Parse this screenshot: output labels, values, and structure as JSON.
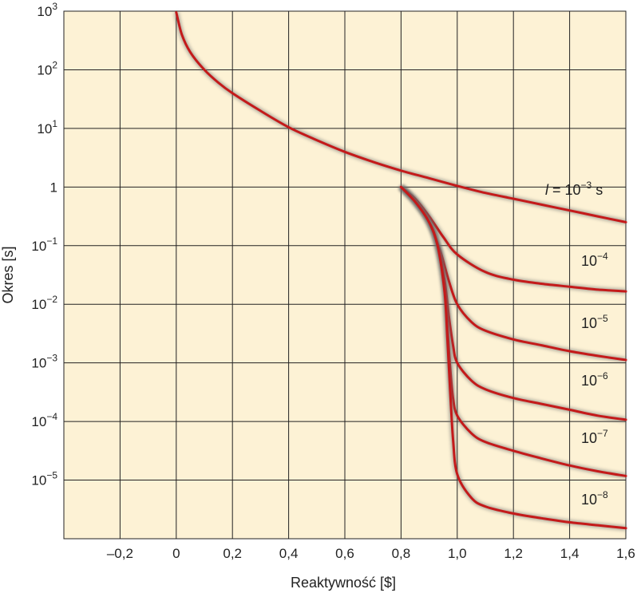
{
  "chart_data": {
    "type": "line",
    "xlabel": "Reaktywność [$]",
    "ylabel": "Okres [s]",
    "xlim": [
      -0.4,
      1.6
    ],
    "ylim_log10": [
      -6,
      3
    ],
    "y_scale": "log",
    "grid": true,
    "background": "#fdf2d5",
    "line_color": "#c41a1a",
    "x_ticks": [
      {
        "value": -0.2,
        "label": "–0,2"
      },
      {
        "value": 0.0,
        "label": "0"
      },
      {
        "value": 0.2,
        "label": "0,2"
      },
      {
        "value": 0.4,
        "label": "0,4"
      },
      {
        "value": 0.6,
        "label": "0,6"
      },
      {
        "value": 0.8,
        "label": "0,8"
      },
      {
        "value": 1.0,
        "label": "1,0"
      },
      {
        "value": 1.2,
        "label": "1,2"
      },
      {
        "value": 1.4,
        "label": "1,4"
      },
      {
        "value": 1.6,
        "label": "1,6"
      }
    ],
    "y_ticks": [
      {
        "value": 3,
        "base": "10",
        "exp": "3"
      },
      {
        "value": 2,
        "base": "10",
        "exp": "2"
      },
      {
        "value": 1,
        "base": "10",
        "exp": "1"
      },
      {
        "value": 0,
        "base": "1",
        "exp": ""
      },
      {
        "value": -1,
        "base": "10",
        "exp": "−1"
      },
      {
        "value": -2,
        "base": "10",
        "exp": "−2"
      },
      {
        "value": -3,
        "base": "10",
        "exp": "−3"
      },
      {
        "value": -4,
        "base": "10",
        "exp": "−4"
      },
      {
        "value": -5,
        "base": "10",
        "exp": "−5"
      }
    ],
    "series": [
      {
        "label_base": "10",
        "label_exp": "−3",
        "label_prefix": "l = ",
        "label_suffix": " s",
        "x": [
          0,
          0.02,
          0.05,
          0.1,
          0.15,
          0.2,
          0.3,
          0.4,
          0.5,
          0.6,
          0.7,
          0.8,
          0.9,
          1.0,
          1.1,
          1.2,
          1.3,
          1.4,
          1.5,
          1.6
        ],
        "log10_y": [
          2.98,
          2.6,
          2.3,
          2.0,
          1.78,
          1.6,
          1.3,
          1.02,
          0.8,
          0.6,
          0.43,
          0.28,
          0.15,
          0.02,
          -0.1,
          -0.2,
          -0.3,
          -0.4,
          -0.5,
          -0.6
        ]
      },
      {
        "label_base": "10",
        "label_exp": "−4",
        "x": [
          0.8,
          0.85,
          0.9,
          0.95,
          1.0,
          1.1,
          1.2,
          1.3,
          1.4,
          1.5,
          1.6
        ],
        "log10_y": [
          0.0,
          -0.2,
          -0.5,
          -0.85,
          -1.15,
          -1.45,
          -1.58,
          -1.65,
          -1.7,
          -1.75,
          -1.78
        ]
      },
      {
        "label_base": "10",
        "label_exp": "−5",
        "x": [
          0.8,
          0.85,
          0.9,
          0.94,
          0.97,
          1.0,
          1.05,
          1.1,
          1.2,
          1.3,
          1.4,
          1.5,
          1.6
        ],
        "log10_y": [
          0.0,
          -0.25,
          -0.6,
          -1.1,
          -1.6,
          -2.0,
          -2.3,
          -2.45,
          -2.6,
          -2.7,
          -2.8,
          -2.88,
          -2.95
        ]
      },
      {
        "label_base": "10",
        "label_exp": "−6",
        "x": [
          0.8,
          0.85,
          0.9,
          0.93,
          0.955,
          0.97,
          0.985,
          1.0,
          1.05,
          1.1,
          1.2,
          1.3,
          1.4,
          1.5,
          1.6
        ],
        "log10_y": [
          0.0,
          -0.25,
          -0.6,
          -1.0,
          -1.6,
          -2.2,
          -2.7,
          -3.0,
          -3.3,
          -3.45,
          -3.6,
          -3.7,
          -3.8,
          -3.9,
          -3.97
        ]
      },
      {
        "label_base": "10",
        "label_exp": "−7",
        "x": [
          0.8,
          0.85,
          0.9,
          0.93,
          0.955,
          0.965,
          0.975,
          0.985,
          1.0,
          1.05,
          1.1,
          1.2,
          1.3,
          1.4,
          1.5,
          1.6
        ],
        "log10_y": [
          0.0,
          -0.25,
          -0.6,
          -1.0,
          -1.7,
          -2.4,
          -3.1,
          -3.6,
          -3.9,
          -4.2,
          -4.35,
          -4.5,
          -4.63,
          -4.75,
          -4.85,
          -4.93
        ]
      },
      {
        "label_base": "10",
        "label_exp": "−8",
        "x": [
          0.8,
          0.85,
          0.9,
          0.93,
          0.955,
          0.965,
          0.975,
          0.985,
          1.0,
          1.05,
          1.1,
          1.2,
          1.3,
          1.4,
          1.5,
          1.6
        ],
        "log10_y": [
          0.0,
          -0.25,
          -0.6,
          -1.0,
          -1.8,
          -2.6,
          -3.5,
          -4.3,
          -4.9,
          -5.3,
          -5.45,
          -5.57,
          -5.65,
          -5.72,
          -5.77,
          -5.82
        ]
      }
    ]
  }
}
